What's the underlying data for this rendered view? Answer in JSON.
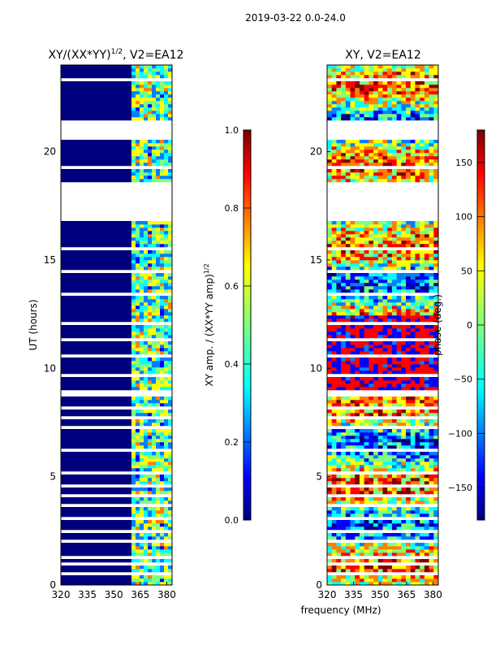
{
  "suptitle": "2019-03-22 0.0-24.0",
  "xlabel_shared": "frequency (MHz)",
  "colors": {
    "jet": [
      "#00007f",
      "#0000ff",
      "#007fff",
      "#00ffff",
      "#7fff7f",
      "#ffff00",
      "#ff7f00",
      "#ff0000",
      "#7f0000"
    ],
    "gap": "#ffffff",
    "frame": "#000000"
  },
  "chart_data": [
    {
      "type": "heatmap",
      "title_main": "XY/(XX*YY)",
      "title_sup": "1/2",
      "title_rest": ", V2=EA12",
      "xlabel": "",
      "ylabel": "UT (hours)",
      "xlim": [
        320,
        383
      ],
      "ylim": [
        0,
        24
      ],
      "xticks": [
        "320",
        "335",
        "350",
        "365",
        "380"
      ],
      "xtick_values": [
        320,
        335,
        350,
        365,
        380
      ],
      "yticks": [
        "0",
        "5",
        "10",
        "15",
        "20"
      ],
      "ytick_values": [
        0,
        5,
        10,
        15,
        20
      ],
      "colorbar": {
        "label_main": "XY amp. / (XX*YY amp)",
        "label_sup": "1/2",
        "range": [
          0.0,
          1.0
        ],
        "ticks": [
          "0.0",
          "0.2",
          "0.4",
          "0.6",
          "0.8",
          "1.0"
        ],
        "tick_values": [
          0.0,
          0.2,
          0.4,
          0.6,
          0.8,
          1.0
        ]
      },
      "description_values": {
        "band_low_mhz": [
          320,
          360
        ],
        "band_low_level": 0.02,
        "band_high_mhz": [
          360,
          383
        ],
        "band_high_level": 0.45
      },
      "gaps_hours": [
        [
          0.45,
          0.62
        ],
        [
          0.9,
          1.05
        ],
        [
          1.25,
          1.35
        ],
        [
          1.95,
          2.05
        ],
        [
          2.45,
          2.55
        ],
        [
          3.05,
          3.15
        ],
        [
          3.6,
          3.7
        ],
        [
          4.1,
          4.25
        ],
        [
          4.55,
          4.65
        ],
        [
          5.05,
          5.2
        ],
        [
          5.65,
          5.75
        ],
        [
          6.1,
          6.25
        ],
        [
          6.7,
          6.8
        ],
        [
          7.2,
          7.35
        ],
        [
          7.7,
          7.8
        ],
        [
          8.15,
          8.3
        ],
        [
          8.75,
          9.0
        ],
        [
          9.6,
          9.75
        ],
        [
          10.5,
          10.6
        ],
        [
          11.3,
          11.4
        ],
        [
          12.05,
          12.15
        ],
        [
          13.3,
          13.5
        ],
        [
          14.4,
          14.5
        ],
        [
          15.5,
          15.6
        ],
        [
          16.8,
          18.6
        ],
        [
          19.2,
          19.35
        ],
        [
          19.9,
          20.0
        ],
        [
          20.5,
          21.5
        ],
        [
          22.3,
          22.4
        ],
        [
          23.3,
          23.4
        ]
      ]
    },
    {
      "type": "heatmap",
      "title_main": "XY, V2=EA12",
      "xlabel": "frequency (MHz)",
      "ylabel": "",
      "xlim": [
        320,
        383
      ],
      "ylim": [
        0,
        24
      ],
      "xticks": [
        "320",
        "335",
        "350",
        "365",
        "380"
      ],
      "xtick_values": [
        320,
        335,
        350,
        365,
        380
      ],
      "yticks": [
        "0",
        "5",
        "10",
        "15",
        "20"
      ],
      "ytick_values": [
        0,
        5,
        10,
        15,
        20
      ],
      "colorbar": {
        "label_main": "phase (deg.)",
        "range": [
          -180,
          180
        ],
        "ticks": [
          "−150",
          "−100",
          "−50",
          "0",
          "50",
          "100",
          "150"
        ],
        "tick_values": [
          -150,
          -100,
          -50,
          0,
          50,
          100,
          150
        ]
      },
      "gaps_hours": [
        [
          0.45,
          0.62
        ],
        [
          0.9,
          1.05
        ],
        [
          1.25,
          1.35
        ],
        [
          1.95,
          2.05
        ],
        [
          2.45,
          2.55
        ],
        [
          3.05,
          3.15
        ],
        [
          3.6,
          3.7
        ],
        [
          4.1,
          4.25
        ],
        [
          4.55,
          4.65
        ],
        [
          5.05,
          5.2
        ],
        [
          5.65,
          5.75
        ],
        [
          6.1,
          6.25
        ],
        [
          6.7,
          6.8
        ],
        [
          7.2,
          7.35
        ],
        [
          7.7,
          7.8
        ],
        [
          8.15,
          8.3
        ],
        [
          8.75,
          9.0
        ],
        [
          9.6,
          9.75
        ],
        [
          10.5,
          10.6
        ],
        [
          11.3,
          11.4
        ],
        [
          12.05,
          12.15
        ],
        [
          13.3,
          13.5
        ],
        [
          14.4,
          14.5
        ],
        [
          15.5,
          15.6
        ],
        [
          16.8,
          18.6
        ],
        [
          19.2,
          19.35
        ],
        [
          19.9,
          20.0
        ],
        [
          20.5,
          21.5
        ],
        [
          22.3,
          22.4
        ],
        [
          23.3,
          23.4
        ]
      ]
    }
  ]
}
